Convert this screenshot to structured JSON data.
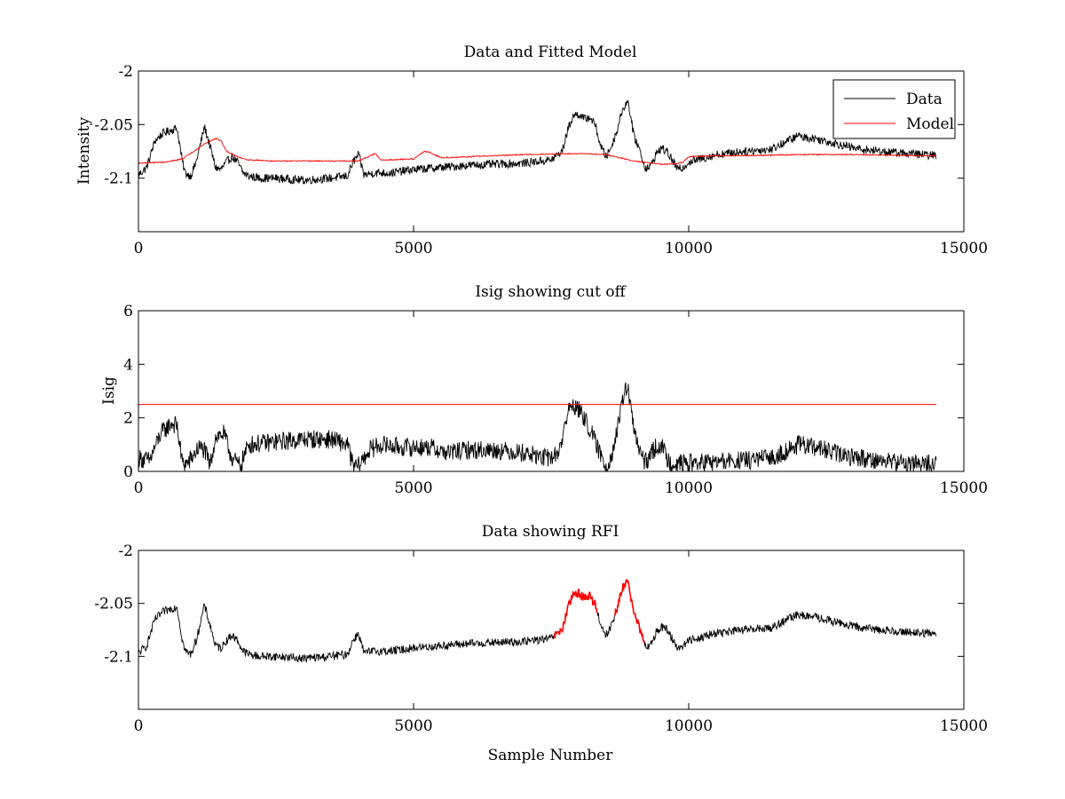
{
  "chart_data": [
    {
      "type": "line",
      "title": "Data and Fitted Model",
      "xlabel": "",
      "ylabel": "Intensity",
      "xlim": [
        0,
        15000
      ],
      "ylim": [
        -2.15,
        -2.0
      ],
      "xticks": [
        0,
        5000,
        10000,
        15000
      ],
      "xtick_labels": [
        "0",
        "5000",
        "10000",
        "15000"
      ],
      "yticks": [
        -2.1,
        -2.05,
        -2.0
      ],
      "ytick_labels": [
        "-2.1",
        "-2.05",
        "-2"
      ],
      "legend": {
        "position": "top-right",
        "entries": [
          "Data",
          "Model"
        ]
      },
      "series": [
        {
          "name": "Data",
          "color": "#000000",
          "noise": 0.004,
          "x": [
            0,
            150,
            300,
            450,
            600,
            700,
            800,
            850,
            950,
            1050,
            1200,
            1300,
            1400,
            1500,
            1600,
            1700,
            1800,
            1900,
            2000,
            2200,
            2500,
            3000,
            3500,
            3800,
            3900,
            4000,
            4100,
            4300,
            4600,
            5000,
            5500,
            6000,
            6500,
            7000,
            7500,
            7700,
            7800,
            7900,
            8000,
            8100,
            8200,
            8300,
            8400,
            8500,
            8600,
            8700,
            8800,
            8900,
            9000,
            9100,
            9200,
            9300,
            9400,
            9500,
            9600,
            9700,
            9800,
            9900,
            10000,
            10500,
            11000,
            11500,
            12000,
            12100,
            12300,
            12700,
            13000,
            13500,
            14000,
            14500
          ],
          "y": [
            -2.097,
            -2.09,
            -2.065,
            -2.058,
            -2.055,
            -2.053,
            -2.085,
            -2.095,
            -2.098,
            -2.085,
            -2.052,
            -2.07,
            -2.09,
            -2.092,
            -2.085,
            -2.08,
            -2.085,
            -2.095,
            -2.098,
            -2.1,
            -2.1,
            -2.102,
            -2.1,
            -2.098,
            -2.085,
            -2.078,
            -2.097,
            -2.095,
            -2.095,
            -2.092,
            -2.09,
            -2.088,
            -2.087,
            -2.086,
            -2.083,
            -2.075,
            -2.055,
            -2.042,
            -2.04,
            -2.045,
            -2.043,
            -2.05,
            -2.07,
            -2.08,
            -2.07,
            -2.055,
            -2.035,
            -2.028,
            -2.06,
            -2.072,
            -2.09,
            -2.09,
            -2.078,
            -2.072,
            -2.075,
            -2.083,
            -2.092,
            -2.09,
            -2.085,
            -2.078,
            -2.075,
            -2.073,
            -2.06,
            -2.062,
            -2.063,
            -2.068,
            -2.072,
            -2.075,
            -2.077,
            -2.079
          ]
        },
        {
          "name": "Model",
          "color": "#ff0000",
          "noise": 0.0005,
          "x": [
            0,
            500,
            800,
            1000,
            1200,
            1400,
            1500,
            1600,
            1800,
            2000,
            2500,
            3000,
            4000,
            4300,
            4400,
            4500,
            5000,
            5200,
            5300,
            5500,
            6000,
            7000,
            8000,
            8500,
            9000,
            9500,
            9700,
            9900,
            10000,
            10500,
            11000,
            12000,
            13000,
            14000,
            14500
          ],
          "y": [
            -2.086,
            -2.085,
            -2.082,
            -2.075,
            -2.068,
            -2.063,
            -2.065,
            -2.075,
            -2.08,
            -2.083,
            -2.084,
            -2.084,
            -2.084,
            -2.077,
            -2.083,
            -2.083,
            -2.082,
            -2.075,
            -2.076,
            -2.081,
            -2.08,
            -2.078,
            -2.077,
            -2.078,
            -2.084,
            -2.087,
            -2.087,
            -2.085,
            -2.08,
            -2.079,
            -2.079,
            -2.078,
            -2.078,
            -2.079,
            -2.079
          ]
        }
      ]
    },
    {
      "type": "line",
      "title": "Isig showing cut off",
      "xlabel": "",
      "ylabel": "Isig",
      "xlim": [
        0,
        15000
      ],
      "ylim": [
        0,
        6
      ],
      "xticks": [
        0,
        5000,
        10000,
        15000
      ],
      "xtick_labels": [
        "0",
        "5000",
        "10000",
        "15000"
      ],
      "yticks": [
        0,
        2,
        4,
        6
      ],
      "ytick_labels": [
        "0",
        "2",
        "4",
        "6"
      ],
      "series": [
        {
          "name": "Isig",
          "color": "#000000",
          "noise": 0.35,
          "x": [
            0,
            200,
            400,
            600,
            700,
            800,
            900,
            1100,
            1200,
            1300,
            1400,
            1550,
            1700,
            1850,
            2000,
            2500,
            3000,
            3500,
            3800,
            3900,
            4000,
            4200,
            4400,
            4800,
            5000,
            5300,
            5600,
            6000,
            6500,
            7000,
            7400,
            7600,
            7700,
            7800,
            7900,
            8000,
            8100,
            8200,
            8400,
            8500,
            8600,
            8700,
            8800,
            8850,
            8900,
            9000,
            9100,
            9200,
            9300,
            9400,
            9500,
            9600,
            9700,
            10000,
            11000,
            11500,
            12000,
            12300,
            12800,
            13500,
            14000,
            14500
          ],
          "y": [
            0.5,
            0.4,
            1.4,
            1.8,
            1.7,
            0.3,
            0.3,
            0.9,
            0.8,
            0.2,
            1.3,
            1.4,
            0.5,
            0.2,
            1.0,
            1.1,
            1.2,
            1.2,
            1.0,
            0.2,
            0.2,
            0.8,
            1.0,
            0.9,
            0.9,
            0.9,
            0.7,
            0.8,
            0.8,
            0.7,
            0.5,
            0.6,
            1.2,
            2.2,
            2.5,
            2.3,
            2.0,
            1.6,
            0.6,
            0.2,
            0.6,
            1.5,
            2.6,
            3.2,
            3.0,
            1.6,
            0.8,
            0.3,
            0.6,
            0.9,
            1.0,
            0.5,
            0.3,
            0.3,
            0.4,
            0.5,
            1.0,
            0.9,
            0.6,
            0.4,
            0.3,
            0.3
          ]
        },
        {
          "name": "Cut off",
          "color": "#ff0000",
          "noise": 0,
          "x": [
            0,
            14500
          ],
          "y": [
            2.5,
            2.5
          ]
        }
      ]
    },
    {
      "type": "line",
      "title": "Data showing RFI",
      "xlabel": "Sample Number",
      "ylabel": "",
      "xlim": [
        0,
        15000
      ],
      "ylim": [
        -2.15,
        -2.0
      ],
      "xticks": [
        0,
        5000,
        10000,
        15000
      ],
      "xtick_labels": [
        "0",
        "5000",
        "10000",
        "15000"
      ],
      "yticks": [
        -2.1,
        -2.05,
        -2.0
      ],
      "ytick_labels": [
        "-2.1",
        "-2.05",
        "-2"
      ],
      "rfi_color": "#ff0000",
      "rfi_ranges": [
        [
          7550,
          8350
        ],
        [
          8650,
          9200
        ]
      ],
      "series": [
        {
          "name": "Data",
          "color": "#000000",
          "noise": 0.004,
          "x": [
            0,
            150,
            300,
            450,
            600,
            700,
            800,
            850,
            950,
            1050,
            1200,
            1300,
            1400,
            1500,
            1600,
            1700,
            1800,
            1900,
            2000,
            2200,
            2500,
            3000,
            3500,
            3800,
            3900,
            4000,
            4100,
            4300,
            4600,
            5000,
            5500,
            6000,
            6500,
            7000,
            7500,
            7700,
            7800,
            7900,
            8000,
            8100,
            8200,
            8300,
            8400,
            8500,
            8600,
            8700,
            8800,
            8900,
            9000,
            9100,
            9200,
            9300,
            9400,
            9500,
            9600,
            9700,
            9800,
            9900,
            10000,
            10500,
            11000,
            11500,
            12000,
            12100,
            12300,
            12700,
            13000,
            13500,
            14000,
            14500
          ],
          "y": [
            -2.097,
            -2.09,
            -2.065,
            -2.058,
            -2.055,
            -2.053,
            -2.085,
            -2.095,
            -2.098,
            -2.085,
            -2.052,
            -2.07,
            -2.09,
            -2.092,
            -2.085,
            -2.08,
            -2.085,
            -2.095,
            -2.098,
            -2.1,
            -2.1,
            -2.102,
            -2.1,
            -2.098,
            -2.085,
            -2.078,
            -2.097,
            -2.095,
            -2.095,
            -2.092,
            -2.09,
            -2.088,
            -2.087,
            -2.086,
            -2.083,
            -2.075,
            -2.055,
            -2.042,
            -2.04,
            -2.045,
            -2.043,
            -2.05,
            -2.07,
            -2.08,
            -2.07,
            -2.055,
            -2.035,
            -2.028,
            -2.06,
            -2.072,
            -2.09,
            -2.09,
            -2.078,
            -2.072,
            -2.075,
            -2.083,
            -2.092,
            -2.09,
            -2.085,
            -2.078,
            -2.075,
            -2.073,
            -2.06,
            -2.062,
            -2.063,
            -2.068,
            -2.072,
            -2.075,
            -2.077,
            -2.079
          ]
        }
      ]
    }
  ]
}
